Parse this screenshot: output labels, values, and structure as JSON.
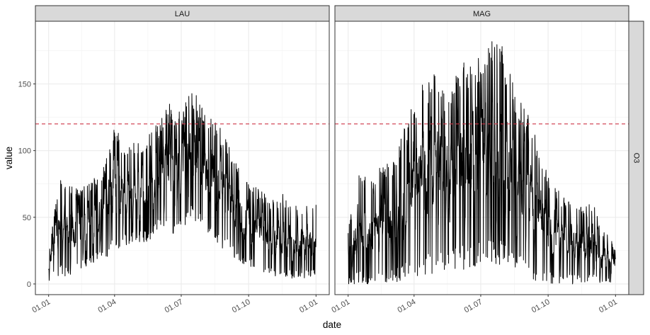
{
  "chart_data": {
    "type": "line",
    "xlabel": "date",
    "ylabel": "value",
    "x_range": [
      "2022-01-01",
      "2023-01-01"
    ],
    "ylim": [
      -8,
      197
    ],
    "y_ticks": [
      0,
      50,
      100,
      150
    ],
    "x_ticks": [
      {
        "date": "2022-01-01",
        "label": "01.01"
      },
      {
        "date": "2022-04-01",
        "label": "01.04"
      },
      {
        "date": "2022-07-01",
        "label": "01.07"
      },
      {
        "date": "2022-10-01",
        "label": "01.10"
      },
      {
        "date": "2023-01-01",
        "label": "01.01"
      }
    ],
    "facet_row_label": "O3",
    "threshold": {
      "value": 120,
      "color": "#cc3344",
      "style": "dashed"
    },
    "grid": true,
    "line_color": "#000000",
    "panels": [
      {
        "name": "LAU",
        "series": [
          {
            "dates": [
              "2022-01-01",
              "2022-01-15",
              "2022-02-01",
              "2022-02-15",
              "2022-03-01",
              "2022-03-15",
              "2022-04-01",
              "2022-04-15",
              "2022-05-01",
              "2022-05-15",
              "2022-06-01",
              "2022-06-15",
              "2022-07-01",
              "2022-07-15",
              "2022-08-01",
              "2022-08-15",
              "2022-09-01",
              "2022-09-15",
              "2022-10-01",
              "2022-10-15",
              "2022-11-01",
              "2022-11-15",
              "2022-12-01",
              "2022-12-15",
              "2023-01-01"
            ],
            "max": [
              22,
              80,
              74,
              72,
              78,
              84,
              118,
              105,
              108,
              112,
              122,
              136,
              128,
              148,
              132,
              125,
              110,
              92,
              80,
              72,
              62,
              68,
              62,
              58,
              64
            ],
            "min": [
              2,
              6,
              4,
              10,
              14,
              18,
              24,
              28,
              32,
              30,
              42,
              36,
              40,
              48,
              42,
              30,
              24,
              18,
              12,
              8,
              6,
              5,
              4,
              4,
              6
            ]
          }
        ]
      },
      {
        "name": "MAG",
        "series": [
          {
            "dates": [
              "2022-01-01",
              "2022-01-15",
              "2022-02-01",
              "2022-02-15",
              "2022-03-01",
              "2022-03-15",
              "2022-04-01",
              "2022-04-15",
              "2022-05-01",
              "2022-05-15",
              "2022-06-01",
              "2022-06-15",
              "2022-07-01",
              "2022-07-15",
              "2022-08-01",
              "2022-08-15",
              "2022-09-01",
              "2022-09-15",
              "2022-10-01",
              "2022-10-15",
              "2022-11-01",
              "2022-11-15",
              "2022-12-01",
              "2022-12-15",
              "2023-01-01"
            ],
            "max": [
              40,
              84,
              82,
              88,
              92,
              110,
              140,
              152,
              162,
              142,
              165,
              168,
              172,
              188,
              178,
              148,
              130,
              112,
              82,
              70,
              62,
              58,
              62,
              42,
              28
            ],
            "min": [
              0,
              0,
              0,
              0,
              0,
              2,
              4,
              6,
              8,
              6,
              10,
              12,
              14,
              16,
              14,
              8,
              4,
              2,
              0,
              0,
              0,
              0,
              0,
              0,
              0
            ]
          }
        ]
      }
    ]
  }
}
